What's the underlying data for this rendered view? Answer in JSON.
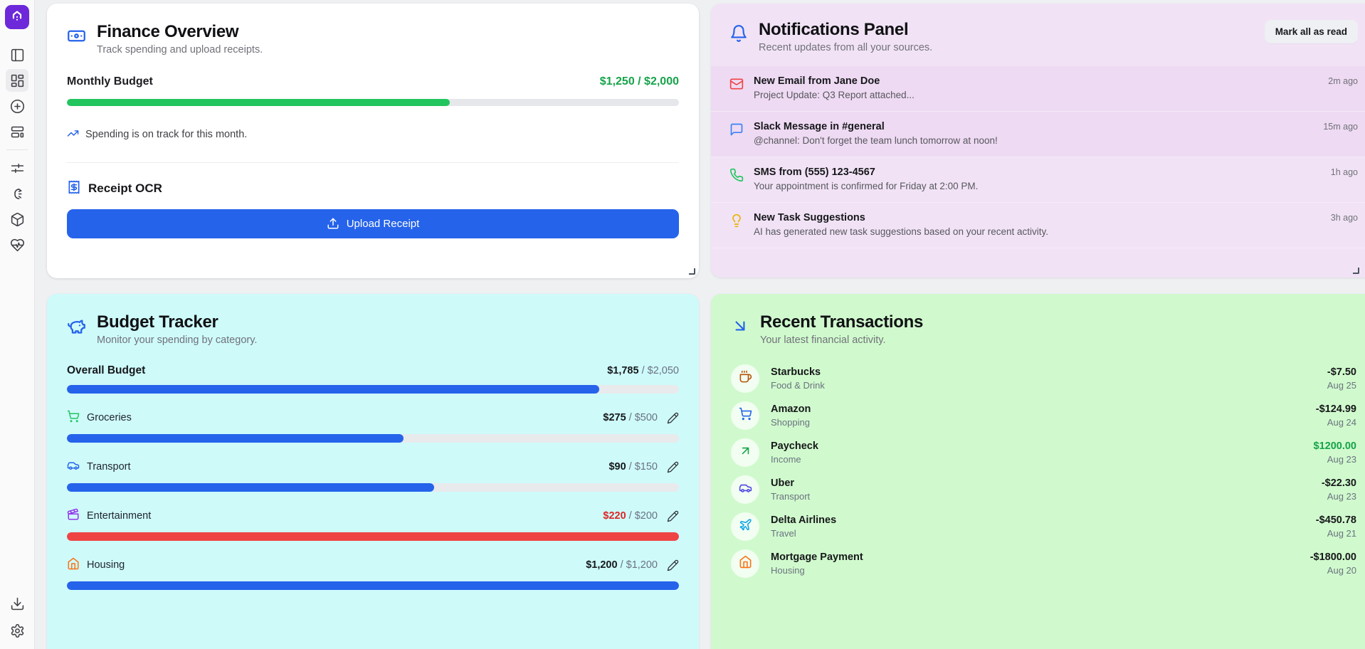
{
  "colors": {
    "accent_blue": "#2563eb",
    "success_green": "#16a34a",
    "danger_red": "#dc2626",
    "bar_green": "#22c55e",
    "bar_red": "#ef4444",
    "panel_pink": "#f1e3f5",
    "panel_cyan": "#cefafa",
    "panel_green": "#d0facd",
    "logo_purple": "#6d28d9"
  },
  "sidebar": {
    "icons": [
      "app-logo",
      "panel-toggle",
      "dashboard-grid",
      "plus-circle",
      "layout-panels",
      "sliders",
      "bird",
      "package",
      "heart-pulse",
      "download",
      "settings"
    ]
  },
  "finance": {
    "title": "Finance Overview",
    "subtitle": "Track spending and upload receipts.",
    "monthly_label": "Monthly Budget",
    "monthly_value": "$1,250 / $2,000",
    "monthly_percent": 62.5,
    "status_text": "Spending is on track for this month.",
    "ocr_label": "Receipt OCR",
    "upload_label": "Upload Receipt"
  },
  "notifications": {
    "title": "Notifications Panel",
    "subtitle": "Recent updates from all your sources.",
    "mark_all_label": "Mark all as read",
    "items": [
      {
        "icon": "mail",
        "title": "New Email from Jane Doe",
        "body": "Project Update: Q3 Report attached...",
        "time": "2m ago",
        "unread": true
      },
      {
        "icon": "message-square",
        "title": "Slack Message in #general",
        "body": "@channel: Don't forget the team lunch tomorrow at noon!",
        "time": "15m ago",
        "unread": true
      },
      {
        "icon": "phone",
        "title": "SMS from (555) 123-4567",
        "body": "Your appointment is confirmed for Friday at 2:00 PM.",
        "time": "1h ago",
        "unread": false
      },
      {
        "icon": "lightbulb",
        "title": "New Task Suggestions",
        "body": "AI has generated new task suggestions based on your recent activity.",
        "time": "3h ago",
        "unread": false
      }
    ]
  },
  "budget": {
    "title": "Budget Tracker",
    "subtitle": "Monitor your spending by category.",
    "overall": {
      "label": "Overall Budget",
      "spent": "$1,785",
      "limit": "/ $2,050",
      "percent": 87
    },
    "categories": [
      {
        "icon": "shopping-cart",
        "name": "Groceries",
        "spent": "$275",
        "limit": "/ $500",
        "percent": 55,
        "over": false
      },
      {
        "icon": "car",
        "name": "Transport",
        "spent": "$90",
        "limit": "/ $150",
        "percent": 60,
        "over": false
      },
      {
        "icon": "clapperboard",
        "name": "Entertainment",
        "spent": "$220",
        "limit": "/ $200",
        "percent": 100,
        "over": true
      },
      {
        "icon": "home",
        "name": "Housing",
        "spent": "$1,200",
        "limit": "/ $1,200",
        "percent": 100,
        "over": false
      }
    ]
  },
  "transactions": {
    "title": "Recent Transactions",
    "subtitle": "Your latest financial activity.",
    "items": [
      {
        "icon": "coffee",
        "name": "Starbucks",
        "category": "Food & Drink",
        "amount": "-$7.50",
        "date": "Aug 25",
        "positive": false
      },
      {
        "icon": "shopping-cart",
        "name": "Amazon",
        "category": "Shopping",
        "amount": "-$124.99",
        "date": "Aug 24",
        "positive": false
      },
      {
        "icon": "arrow-up-right",
        "name": "Paycheck",
        "category": "Income",
        "amount": "$1200.00",
        "date": "Aug 23",
        "positive": true
      },
      {
        "icon": "car",
        "name": "Uber",
        "category": "Transport",
        "amount": "-$22.30",
        "date": "Aug 23",
        "positive": false
      },
      {
        "icon": "plane",
        "name": "Delta Airlines",
        "category": "Travel",
        "amount": "-$450.78",
        "date": "Aug 21",
        "positive": false
      },
      {
        "icon": "home",
        "name": "Mortgage Payment",
        "category": "Housing",
        "amount": "-$1800.00",
        "date": "Aug 20",
        "positive": false
      }
    ]
  }
}
